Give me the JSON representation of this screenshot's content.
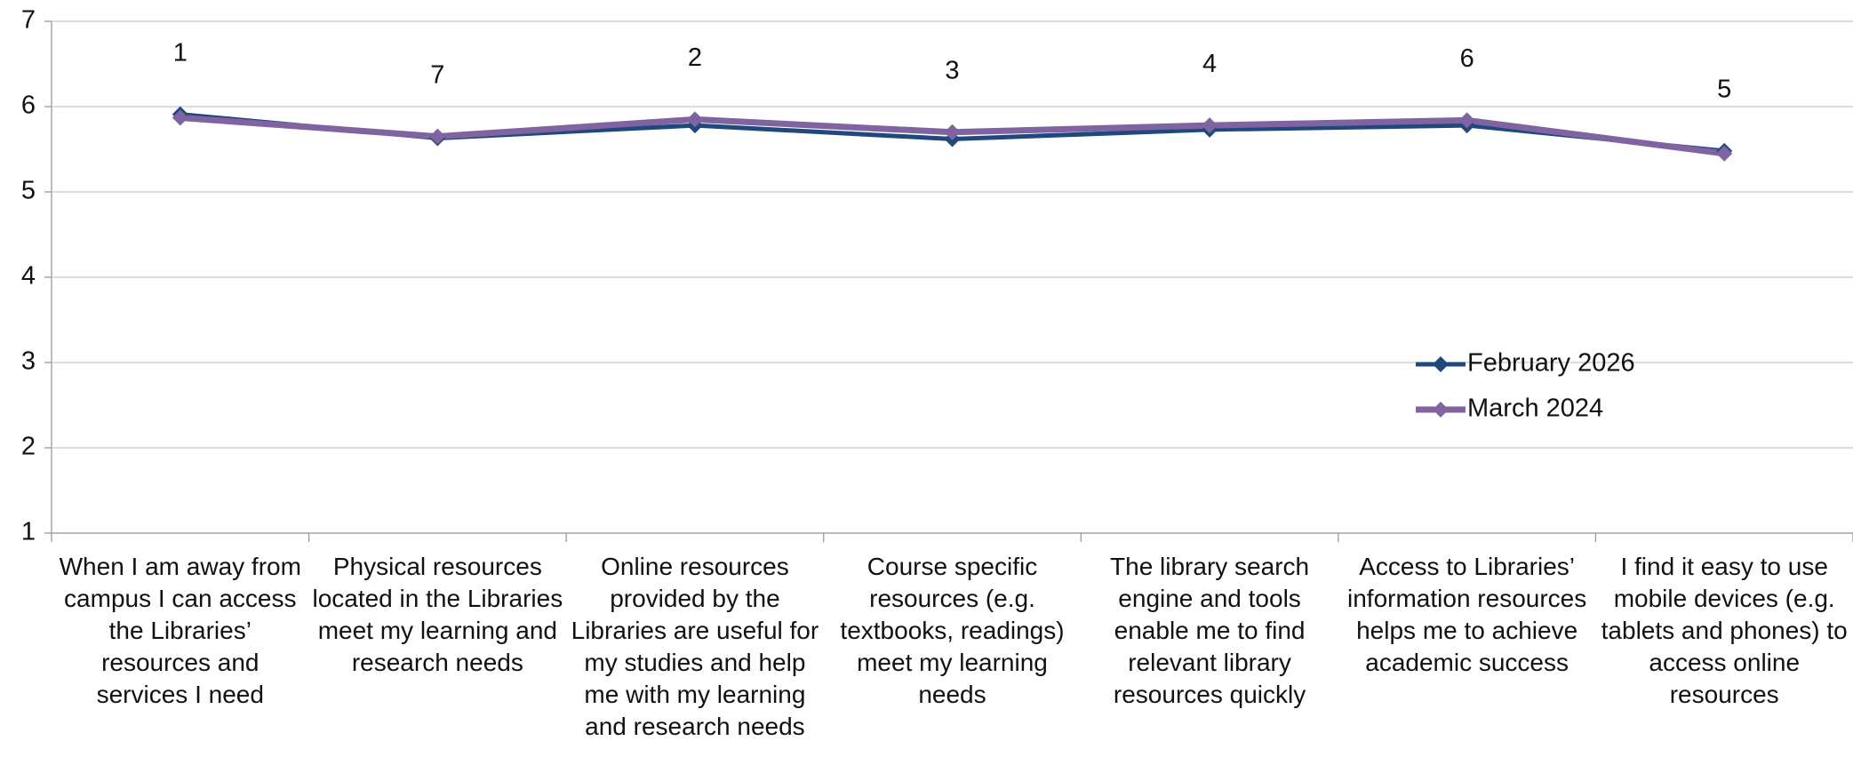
{
  "chart_data": {
    "type": "line",
    "categories": [
      "When I am away from campus I can access the Libraries’ resources and services I need",
      "Physical resources located in the Libraries meet my learning and research needs",
      "Online resources provided by the Libraries are useful for my studies and help me with my learning and research needs",
      "Course specific resources (e.g. textbooks, readings) meet my learning needs",
      "The library search engine and tools enable me to find relevant library resources quickly",
      "Access to Libraries’ information resources helps me to achieve academic success",
      "I find it easy to use mobile devices (e.g. tablets and phones) to access online resources"
    ],
    "series": [
      {
        "name": "February 2026",
        "color": "#1f497d",
        "values": [
          5.91,
          5.63,
          5.78,
          5.62,
          5.73,
          5.78,
          5.48
        ]
      },
      {
        "name": "March 2024",
        "color": "#8064a2",
        "values": [
          5.87,
          5.65,
          5.85,
          5.7,
          5.78,
          5.84,
          5.45
        ]
      }
    ],
    "annotations": [
      "1",
      "7",
      "2",
      "3",
      "4",
      "6",
      "5"
    ],
    "ylim": [
      1,
      7
    ],
    "yticks": [
      1,
      2,
      3,
      4,
      5,
      6,
      7
    ],
    "grid": true,
    "legend_position": "right"
  }
}
